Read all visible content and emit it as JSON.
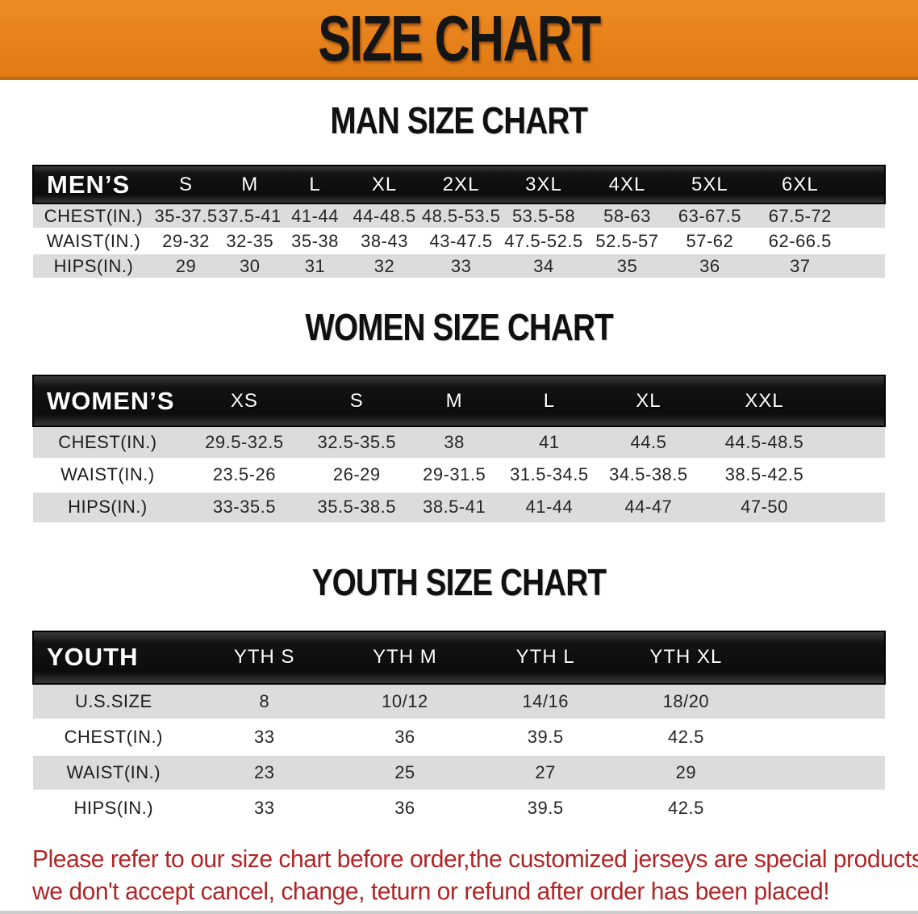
{
  "banner": {
    "title": "SIZE CHART"
  },
  "sections": [
    {
      "id": "mens",
      "heading": "MAN SIZE CHART",
      "table": {
        "header_label": "MEN’S",
        "sizes": [
          "S",
          "M",
          "L",
          "XL",
          "2XL",
          "3XL",
          "4XL",
          "5XL",
          "6XL"
        ],
        "rows": [
          {
            "label": "CHEST(IN.)",
            "values": [
              "35-37.5",
              "37.5-41",
              "41-44",
              "44-48.5",
              "48.5-53.5",
              "53.5-58",
              "58-63",
              "63-67.5",
              "67.5-72"
            ]
          },
          {
            "label": "WAIST(IN.)",
            "values": [
              "29-32",
              "32-35",
              "35-38",
              "38-43",
              "43-47.5",
              "47.5-52.5",
              "52.5-57",
              "57-62",
              "62-66.5"
            ]
          },
          {
            "label": "HIPS(IN.)",
            "values": [
              "29",
              "30",
              "31",
              "32",
              "33",
              "34",
              "35",
              "36",
              "37"
            ]
          }
        ]
      }
    },
    {
      "id": "womens",
      "heading": "WOMEN SIZE CHART",
      "table": {
        "header_label": "WOMEN’S",
        "sizes": [
          "XS",
          "S",
          "M",
          "L",
          "XL",
          "XXL"
        ],
        "rows": [
          {
            "label": "CHEST(IN.)",
            "values": [
              "29.5-32.5",
              "32.5-35.5",
              "38",
              "41",
              "44.5",
              "44.5-48.5"
            ]
          },
          {
            "label": "WAIST(IN.)",
            "values": [
              "23.5-26",
              "26-29",
              "29-31.5",
              "31.5-34.5",
              "34.5-38.5",
              "38.5-42.5"
            ]
          },
          {
            "label": "HIPS(IN.)",
            "values": [
              "33-35.5",
              "35.5-38.5",
              "38.5-41",
              "41-44",
              "44-47",
              "47-50"
            ]
          }
        ]
      }
    },
    {
      "id": "youth",
      "heading": "YOUTH SIZE CHART",
      "table": {
        "header_label": "YOUTH",
        "sizes": [
          "YTH S",
          "YTH M",
          "YTH L",
          "YTH XL"
        ],
        "rows": [
          {
            "label": "U.S.SIZE",
            "values": [
              "8",
              "10/12",
              "14/16",
              "18/20"
            ]
          },
          {
            "label": "CHEST(IN.)",
            "values": [
              "33",
              "36",
              "39.5",
              "42.5"
            ]
          },
          {
            "label": "WAIST(IN.)",
            "values": [
              "23",
              "25",
              "27",
              "29"
            ]
          },
          {
            "label": "HIPS(IN.)",
            "values": [
              "33",
              "36",
              "39.5",
              "42.5"
            ]
          }
        ]
      }
    }
  ],
  "footer": {
    "lines": [
      "Please refer to our size chart before order,the customized jerseys are special products,",
      "we don't accept cancel, change, teturn or refund after order has been placed!"
    ]
  },
  "colors": {
    "banner_orange": "#e8821c",
    "header_black": "#141414",
    "row_gray": "#dcdcdc",
    "notice_red": "#b02626"
  }
}
